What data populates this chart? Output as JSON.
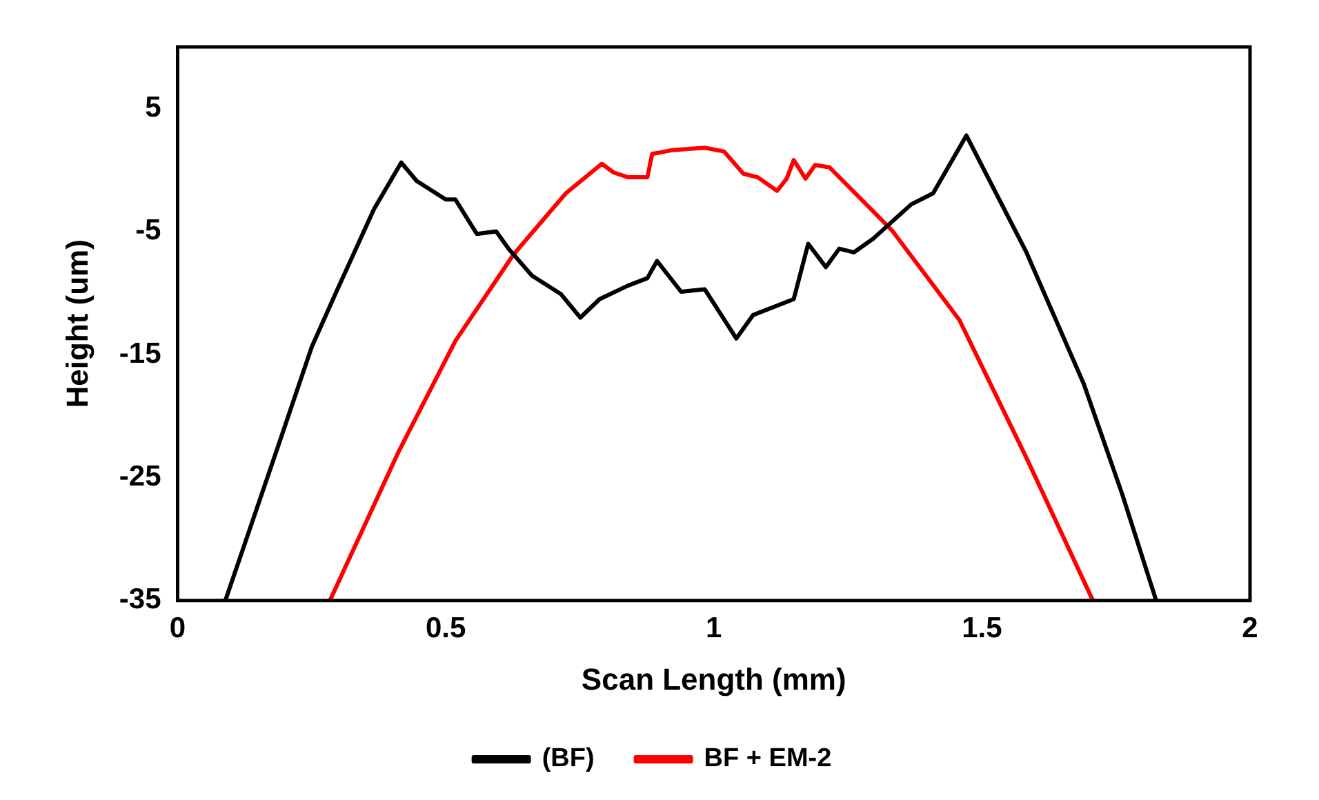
{
  "chart_data": {
    "type": "line",
    "xlabel": "Scan Length (mm)",
    "ylabel": "Height (um)",
    "xlim": [
      0,
      2
    ],
    "xticks": [
      0,
      0.5,
      1,
      1.5,
      2
    ],
    "ylim": [
      -35,
      10
    ],
    "yticks": [
      -35,
      -25,
      -15,
      -5,
      5
    ],
    "grid": false,
    "legend": "bottom",
    "marker": "none",
    "line_style": "solid",
    "series": [
      {
        "name": "(BF)",
        "color": "#000000",
        "x": [
          0.089,
          0.187,
          0.25,
          0.294,
          0.366,
          0.417,
          0.446,
          0.5,
          0.518,
          0.558,
          0.594,
          0.617,
          0.661,
          0.715,
          0.751,
          0.787,
          0.84,
          0.876,
          0.894,
          0.939,
          0.983,
          1.042,
          1.073,
          1.149,
          1.176,
          1.209,
          1.234,
          1.261,
          1.297,
          1.368,
          1.409,
          1.471,
          1.583,
          1.69,
          1.762,
          1.825
        ],
        "values": [
          -35,
          -22.5,
          -14.4,
          -10.1,
          -3.2,
          0.6,
          -0.9,
          -2.4,
          -2.4,
          -5.2,
          -5,
          -6.4,
          -8.6,
          -10.1,
          -12,
          -10.5,
          -9.4,
          -8.8,
          -7.4,
          -9.9,
          -9.7,
          -13.7,
          -11.8,
          -10.5,
          -6,
          -7.9,
          -6.4,
          -6.7,
          -5.6,
          -2.8,
          -1.9,
          2.8,
          -6.7,
          -17.4,
          -26.4,
          -35
        ]
      },
      {
        "name": "BF + EM-2",
        "color": "#ff0000",
        "x": [
          0.284,
          0.411,
          0.518,
          0.626,
          0.724,
          0.791,
          0.813,
          0.84,
          0.876,
          0.885,
          0.921,
          0.983,
          1.019,
          1.055,
          1.082,
          1.118,
          1.136,
          1.149,
          1.171,
          1.189,
          1.216,
          1.332,
          1.458,
          1.583,
          1.707
        ],
        "values": [
          -35,
          -23,
          -13.9,
          -6.9,
          -1.9,
          0.5,
          -0.2,
          -0.6,
          -0.6,
          1.3,
          1.6,
          1.8,
          1.5,
          -0.3,
          -0.6,
          -1.7,
          -0.7,
          0.8,
          -0.7,
          0.4,
          0.2,
          -4.9,
          -12.2,
          -23.4,
          -35
        ]
      }
    ]
  }
}
